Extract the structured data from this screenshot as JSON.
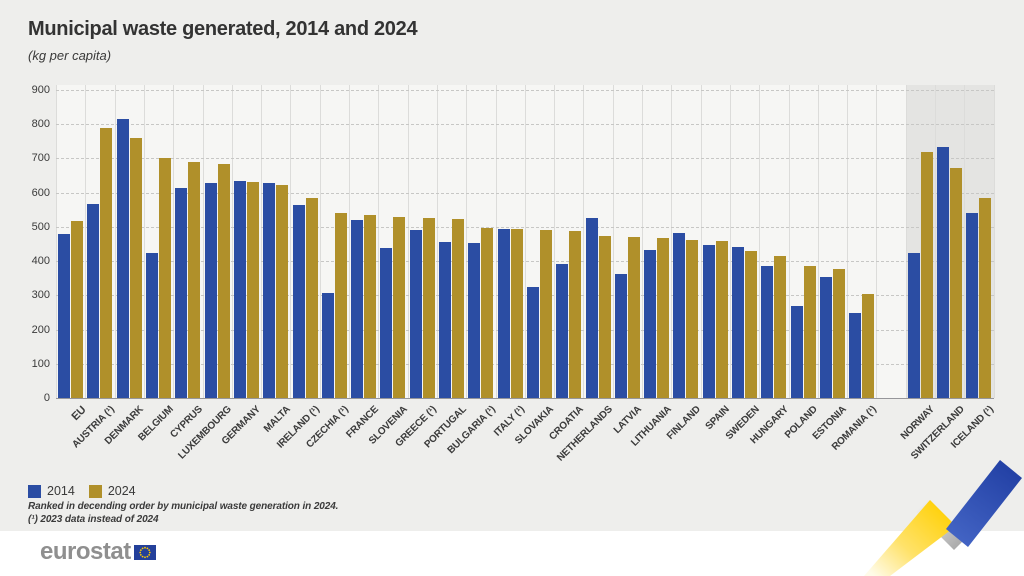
{
  "title": "Municipal waste generated, 2014 and 2024",
  "subtitle": "(kg per capita)",
  "legend": [
    {
      "label": "2014",
      "color": "#2b4da3"
    },
    {
      "label": "2024",
      "color": "#b0902a"
    }
  ],
  "footnotes": [
    "Ranked in decending order by municipal waste generation in 2024.",
    "(¹) 2023 data instead of 2024"
  ],
  "logo": {
    "text": "eurostat"
  },
  "colors": {
    "bar_2014": "#2b4da3",
    "bar_2024": "#b0902a",
    "efta_panel": "#e4e4e2",
    "page_bg": "#eeeeec",
    "ribbon_yellow": "#ffd617",
    "ribbon_blue": "#2644a7",
    "ribbon_silver": "#c9c9c9",
    "flag_blue": "#24409a",
    "flag_stars": "#ffcc00"
  },
  "chart_data": {
    "type": "bar",
    "title": "Municipal waste generated, 2014 and 2024",
    "unit": "kg per capita",
    "xlabel": "",
    "ylabel": "",
    "ylim": [
      0,
      900
    ],
    "ytick_interval": 100,
    "yticks": [
      0,
      100,
      200,
      300,
      400,
      500,
      600,
      700,
      800,
      900
    ],
    "grid": "horizontal-dashed",
    "legend_position": "bottom-left",
    "categories": [
      "EU",
      "AUSTRIA (¹)",
      "DENMARK",
      "BELGIUM",
      "CYPRUS",
      "LUXEMBOURG",
      "GERMANY",
      "MALTA",
      "IRELAND (¹)",
      "CZECHIA (¹)",
      "FRANCE",
      "SLOVENIA",
      "GREECE (¹)",
      "PORTUGAL",
      "BULGARIA (¹)",
      "ITALY (¹)",
      "SLOVAKIA",
      "CROATIA",
      "NETHERLANDS",
      "LATVIA",
      "LITHUANIA",
      "FINLAND",
      "SPAIN",
      "SWEDEN",
      "HUNGARY",
      "POLAND",
      "ESTONIA",
      "ROMANIA (¹)",
      "NORWAY",
      "SWITZERLAND",
      "ICELAND (¹)"
    ],
    "series": [
      {
        "name": "2014",
        "color": "#2b4da3",
        "values": [
          479,
          567,
          815,
          424,
          614,
          628,
          634,
          629,
          564,
          308,
          519,
          437,
          490,
          456,
          453,
          494,
          323,
          391,
          527,
          363,
          432,
          482,
          447,
          441,
          386,
          269,
          354,
          248,
          424,
          734,
          540
        ]
      },
      {
        "name": "2024",
        "color": "#b0902a",
        "values": [
          517,
          789,
          760,
          701,
          690,
          684,
          631,
          621,
          584,
          541,
          535,
          529,
          526,
          522,
          496,
          493,
          492,
          489,
          474,
          470,
          468,
          462,
          458,
          429,
          415,
          387,
          377,
          304,
          719,
          672,
          583
        ]
      }
    ],
    "group_gap_after_index": 27,
    "efta_group": {
      "members": [
        "NORWAY",
        "SWITZERLAND",
        "ICELAND (¹)"
      ],
      "panel_background": "#e4e4e2"
    }
  }
}
